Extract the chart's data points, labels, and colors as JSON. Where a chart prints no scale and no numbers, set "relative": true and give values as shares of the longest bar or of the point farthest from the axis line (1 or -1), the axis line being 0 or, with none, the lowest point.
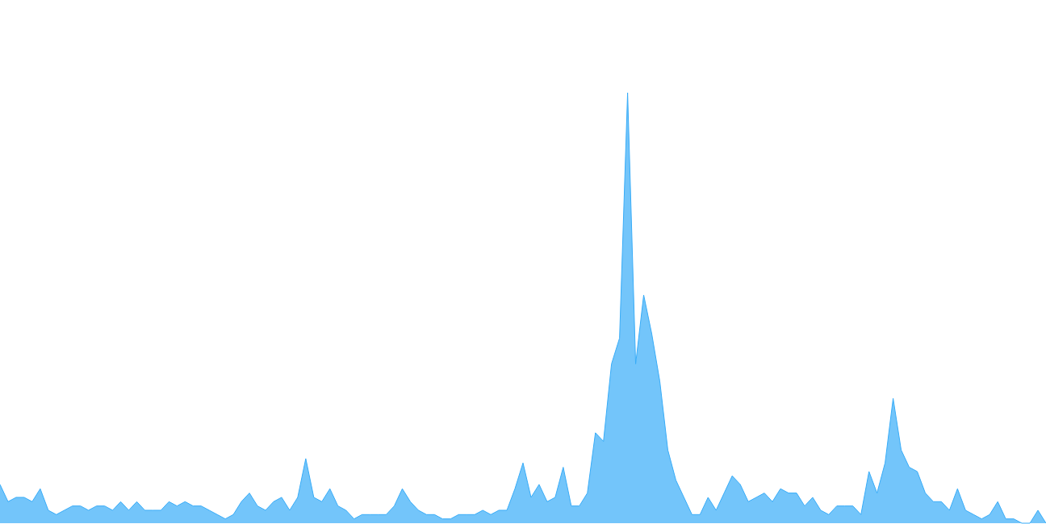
{
  "chart_data": {
    "type": "area",
    "relative": true,
    "categories": [
      null,
      null,
      null,
      null,
      null,
      null,
      null,
      null,
      null,
      null,
      null,
      null,
      null,
      null,
      null,
      null,
      null,
      null,
      null,
      null,
      null,
      null,
      null,
      null,
      null,
      null,
      null,
      null,
      null,
      null,
      null,
      null,
      null,
      null,
      null,
      null,
      null,
      null,
      null,
      null,
      null,
      null,
      null,
      null,
      null,
      null,
      null,
      null,
      null,
      null,
      null,
      null,
      null,
      null,
      null,
      null,
      null,
      null,
      null,
      null,
      null,
      null,
      null,
      null,
      null,
      null,
      null,
      null,
      null,
      null,
      null,
      null,
      null,
      null,
      null,
      null,
      null,
      null,
      null,
      null,
      null,
      null,
      null,
      null,
      null,
      null,
      null,
      null,
      null,
      null,
      null,
      null,
      null,
      null,
      null,
      null,
      null,
      null,
      null,
      null,
      null,
      null,
      null,
      null,
      null,
      null,
      null,
      null,
      null,
      null,
      null,
      null,
      null,
      null,
      null,
      null,
      null,
      null,
      null,
      null,
      null,
      null,
      null,
      null,
      null,
      null,
      null,
      null,
      null,
      null,
      null
    ],
    "series": [
      {
        "color": "#38acf8",
        "values": [
          0.09,
          0.05,
          0.06,
          0.06,
          0.05,
          0.08,
          0.03,
          0.02,
          0.03,
          0.04,
          0.04,
          0.03,
          0.04,
          0.04,
          0.03,
          0.05,
          0.03,
          0.05,
          0.03,
          0.03,
          0.03,
          0.05,
          0.04,
          0.05,
          0.04,
          0.04,
          0.03,
          0.02,
          0.01,
          0.02,
          0.05,
          0.07,
          0.04,
          0.03,
          0.05,
          0.06,
          0.03,
          0.06,
          0.15,
          0.06,
          0.05,
          0.08,
          0.04,
          0.03,
          0.01,
          0.02,
          0.02,
          0.02,
          0.02,
          0.04,
          0.08,
          0.05,
          0.03,
          0.02,
          0.02,
          0.01,
          0.01,
          0.02,
          0.02,
          0.02,
          0.03,
          0.02,
          0.03,
          0.03,
          0.08,
          0.14,
          0.06,
          0.09,
          0.05,
          0.06,
          0.13,
          0.04,
          0.04,
          0.07,
          0.21,
          0.19,
          0.37,
          0.43,
          1,
          0.37,
          0.53,
          0.44,
          0.33,
          0.17,
          0.1,
          0.06,
          0.02,
          0.02,
          0.06,
          0.03,
          0.07,
          0.11,
          0.09,
          0.05,
          0.06,
          0.07,
          0.05,
          0.08,
          0.07,
          0.07,
          0.04,
          0.06,
          0.03,
          0.02,
          0.04,
          0.04,
          0.04,
          0.02,
          0.12,
          0.07,
          0.14,
          0.29,
          0.17,
          0.13,
          0.12,
          0.07,
          0.05,
          0.05,
          0.03,
          0.08,
          0.03,
          0.02,
          0.01,
          0.02,
          0.05,
          0.01,
          0.01,
          0,
          0,
          0.03,
          0
        ]
      }
    ]
  }
}
